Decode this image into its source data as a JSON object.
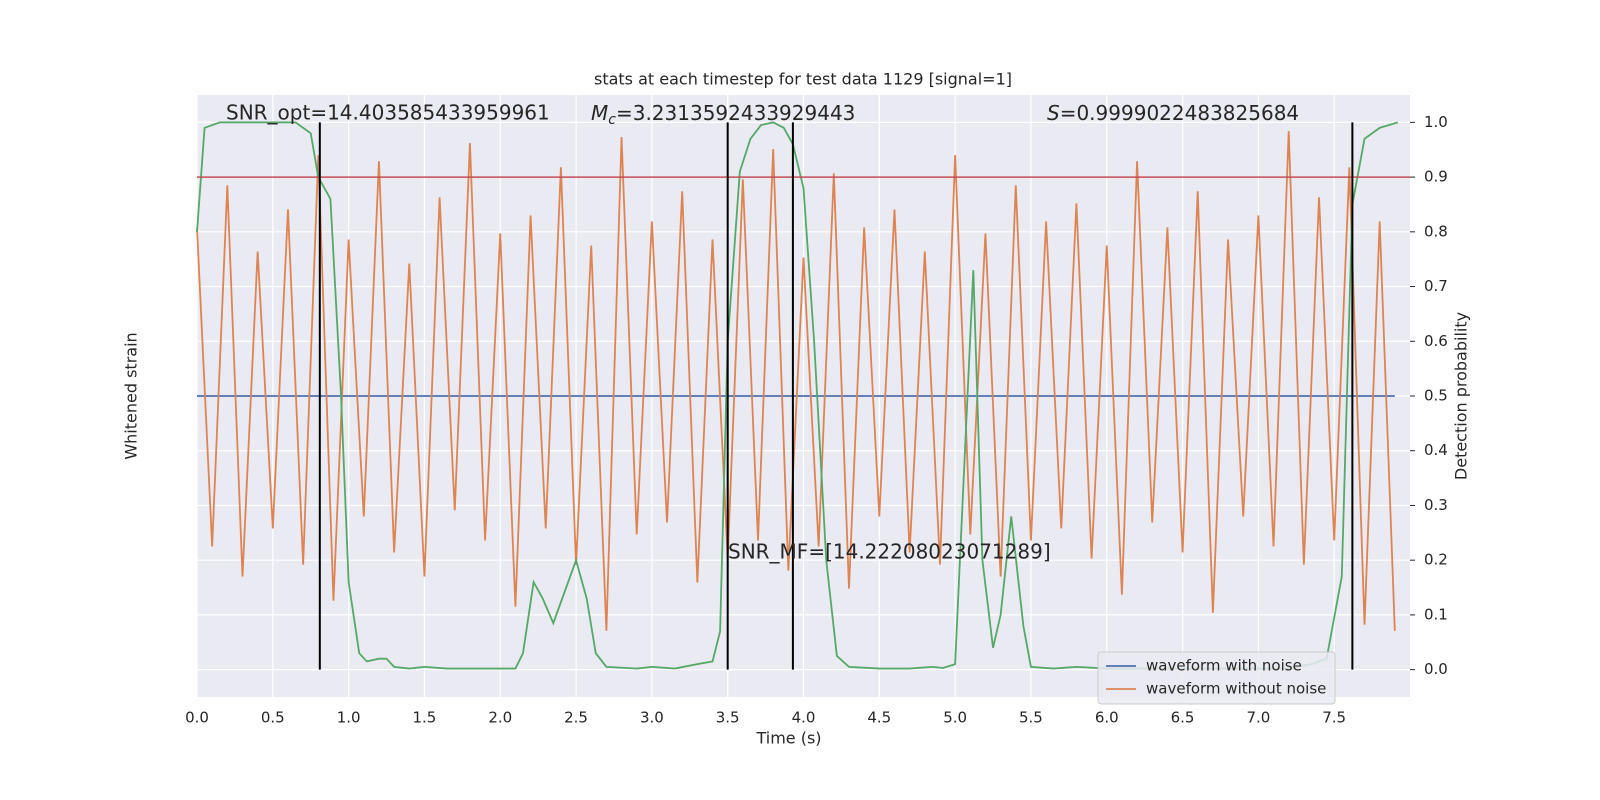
{
  "chart_data": {
    "type": "line",
    "title": "stats at each timestep for test data 1129 [signal=1]",
    "xlabel": "Time (s)",
    "ylabel": "Whitened strain",
    "y2label": "Detection probability",
    "xlim": [
      0,
      8
    ],
    "xticks": [
      {
        "value": 0,
        "label": "0.0"
      },
      0.5,
      {
        "value": 1,
        "label": "1.0"
      },
      1.5,
      {
        "value": 2,
        "label": "2.0"
      },
      2.5,
      {
        "value": 3,
        "label": "3.0"
      },
      3.5,
      {
        "value": 4,
        "label": "4.0"
      },
      4.5,
      {
        "value": 5,
        "label": "5.0"
      },
      5.5,
      {
        "value": 6,
        "label": "6.0"
      },
      6.5,
      {
        "value": 7,
        "label": "7.0"
      },
      7.5
    ],
    "ylim": [
      -5,
      5
    ],
    "y2lim": [
      -0.05,
      1.05
    ],
    "y2ticks": [
      {
        "value": 0,
        "label": "0.0"
      },
      0.1,
      0.2,
      0.3,
      0.4,
      0.5,
      0.6,
      0.7,
      0.8,
      0.9,
      {
        "value": 1,
        "label": "1.0"
      }
    ],
    "grid": true,
    "legend": "lower right",
    "series": [
      {
        "name": "waveform with noise",
        "color": "#4c72b0",
        "x": [
          0,
          7.9
        ],
        "values": [
          0,
          0
        ]
      },
      {
        "name": "waveform without noise",
        "color": "#dd8452",
        "x": [
          0,
          0.1,
          0.2,
          0.3,
          0.4,
          0.5,
          0.6,
          0.7,
          0.8,
          0.9,
          1,
          1.1,
          1.2,
          1.3,
          1.4,
          1.5,
          1.6,
          1.7,
          1.8,
          1.9,
          2,
          2.1,
          2.2,
          2.3,
          2.4,
          2.5,
          2.6,
          2.7,
          2.8,
          2.9,
          3,
          3.1,
          3.2,
          3.3,
          3.4,
          3.5,
          3.6,
          3.7,
          3.8,
          3.9,
          4,
          4.1,
          4.2,
          4.3,
          4.4,
          4.5,
          4.6,
          4.7,
          4.8,
          4.9,
          5,
          5.1,
          5.2,
          5.3,
          5.4,
          5.5,
          5.6,
          5.7,
          5.8,
          5.9,
          6,
          6.1,
          6.2,
          6.3,
          6.4,
          6.5,
          6.6,
          6.7,
          6.8,
          6.9,
          7,
          7.1,
          7.2,
          7.3,
          7.4,
          7.5,
          7.6,
          7.7,
          7.8,
          7.9
        ],
        "values": [
          2.8,
          -2.5,
          3.5,
          -3.0,
          2.4,
          -2.2,
          3.1,
          -2.8,
          4.0,
          -3.4,
          2.6,
          -2.0,
          3.9,
          -2.6,
          2.2,
          -3.0,
          3.3,
          -1.9,
          4.2,
          -2.4,
          2.7,
          -3.5,
          3.0,
          -2.2,
          3.8,
          -2.8,
          2.5,
          -3.9,
          4.3,
          -2.3,
          2.9,
          -2.1,
          3.4,
          -3.1,
          2.6,
          -2.7,
          3.6,
          -2.4,
          4.1,
          -2.9,
          2.3,
          -2.5,
          3.7,
          -3.2,
          2.8,
          -2.0,
          3.1,
          -2.6,
          2.4,
          -2.8,
          4.0,
          -2.3,
          2.7,
          -3.0,
          3.5,
          -2.4,
          2.9,
          -2.2,
          3.2,
          -2.7,
          2.5,
          -3.3,
          3.9,
          -2.1,
          2.8,
          -2.6,
          3.4,
          -3.6,
          2.6,
          -2.0,
          3.0,
          -2.5,
          4.4,
          -2.8,
          3.3,
          -2.4,
          3.8,
          -3.8,
          2.9,
          -3.9
        ]
      },
      {
        "color": "#55a868",
        "axis": "y2",
        "x": [
          0,
          0.05,
          0.15,
          0.3,
          0.5,
          0.65,
          0.75,
          0.8,
          0.88,
          0.95,
          1,
          1.07,
          1.12,
          1.2,
          1.25,
          1.3,
          1.4,
          1.5,
          1.65,
          1.8,
          2.1,
          2.15,
          2.22,
          2.28,
          2.35,
          2.5,
          2.57,
          2.63,
          2.7,
          2.9,
          3,
          3.15,
          3.3,
          3.4,
          3.45,
          3.5,
          3.58,
          3.65,
          3.72,
          3.8,
          3.87,
          3.93,
          4,
          4.07,
          4.15,
          4.22,
          4.3,
          4.5,
          4.7,
          4.85,
          4.92,
          5,
          5.12,
          5.18,
          5.25,
          5.3,
          5.37,
          5.45,
          5.5,
          5.65,
          5.8,
          6,
          6.5,
          7.2,
          7.35,
          7.45,
          7.55,
          7.62,
          7.7,
          7.8,
          7.92
        ],
        "values": [
          0.8,
          0.99,
          1,
          1,
          1,
          1,
          0.98,
          0.9,
          0.86,
          0.5,
          0.16,
          0.03,
          0.015,
          0.02,
          0.02,
          0.005,
          0.002,
          0.005,
          0.002,
          0.002,
          0.002,
          0.03,
          0.16,
          0.13,
          0.085,
          0.2,
          0.13,
          0.03,
          0.005,
          0.002,
          0.005,
          0.002,
          0.01,
          0.015,
          0.07,
          0.6,
          0.91,
          0.97,
          0.995,
          1,
          0.99,
          0.96,
          0.88,
          0.6,
          0.2,
          0.025,
          0.005,
          0.002,
          0.002,
          0.005,
          0.003,
          0.01,
          0.73,
          0.2,
          0.04,
          0.1,
          0.28,
          0.08,
          0.005,
          0.002,
          0.005,
          0.002,
          0.002,
          0.002,
          0.01,
          0.02,
          0.17,
          0.85,
          0.97,
          0.99,
          1
        ]
      }
    ],
    "threshold": {
      "value": 0.9,
      "color": "#c44e52"
    },
    "vlines": [
      0.81,
      3.5,
      3.93,
      7.62
    ],
    "annotations": {
      "snr_opt": "SNR_opt=14.403585433959961",
      "mc_symbol": "M",
      "mc_subscript": "c",
      "mc_text": "=3.2313592433929443",
      "s_symbol": "S",
      "s_text": "=0.9999022483825684",
      "snr_mf": "SNR_MF=[14.22208023071289]"
    }
  }
}
